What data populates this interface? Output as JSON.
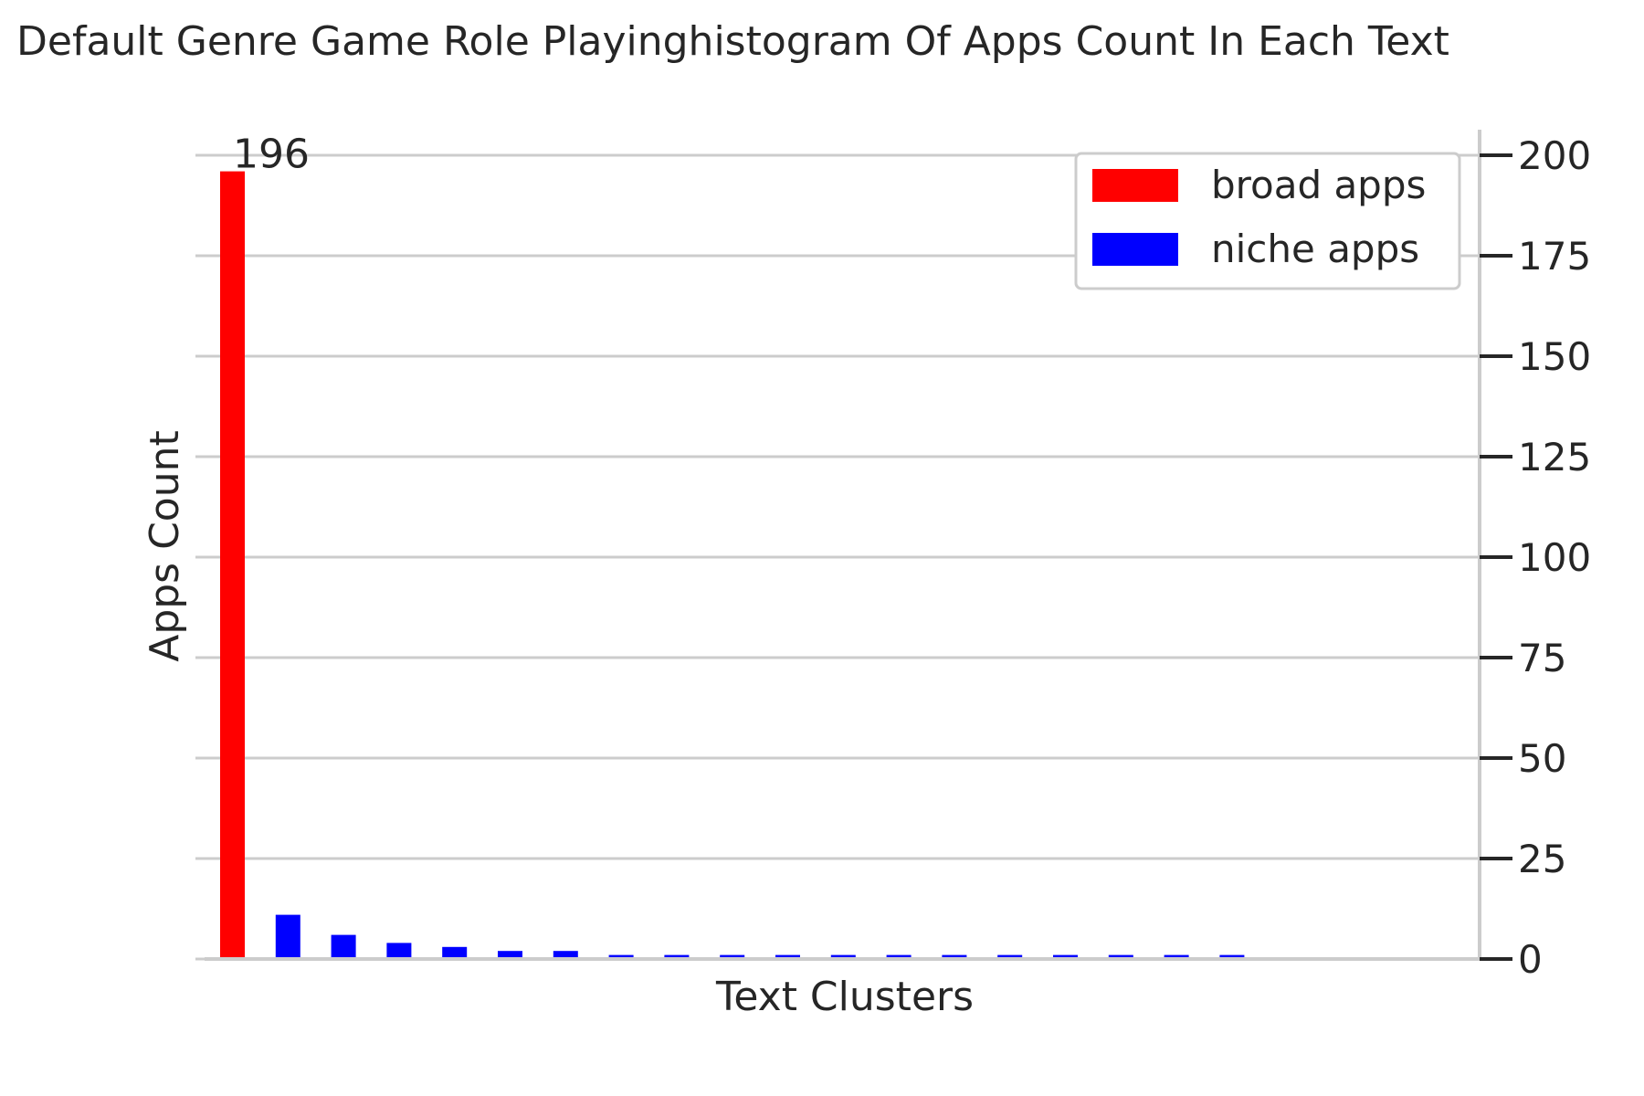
{
  "chart_data": {
    "type": "bar",
    "title": "Default Genre Game Role Playinghistogram Of Apps Count In Each Text",
    "xlabel": "Text Clusters",
    "ylabel": "Apps Count",
    "ylim": [
      0,
      206
    ],
    "yticks": [
      0,
      25,
      50,
      75,
      100,
      125,
      150,
      175,
      200
    ],
    "y_axis_side": "right",
    "grid": true,
    "legend_position": "top-right",
    "series": [
      {
        "name": "broad apps",
        "color": "#ff0000",
        "values": [
          196
        ]
      },
      {
        "name": "niche apps",
        "color": "#0000ff",
        "values": [
          11,
          6,
          4,
          3,
          2,
          2,
          1,
          1,
          1,
          1,
          1,
          1,
          1,
          1,
          1,
          1,
          1,
          1
        ]
      }
    ],
    "data_labels": [
      {
        "series": "broad apps",
        "index": 0,
        "text": "196"
      }
    ]
  }
}
